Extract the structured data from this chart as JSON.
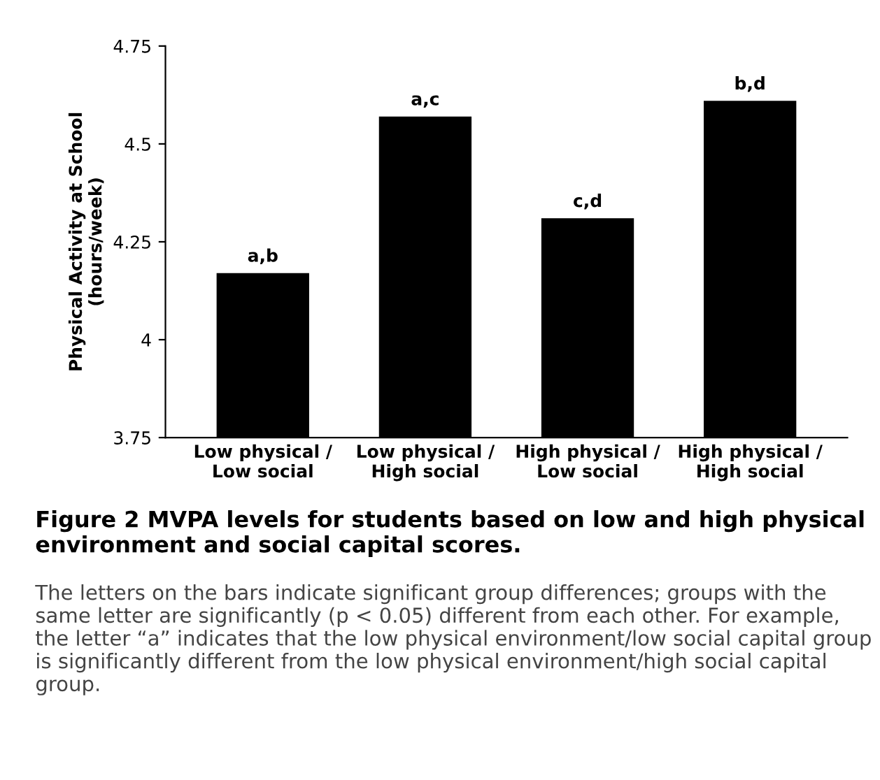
{
  "chart_data": {
    "type": "bar",
    "title": "Figure 2 MVPA levels for students based on low and high physical environment and social capital scores.",
    "ylabel": "Physical Activity at School\n(hours/week)",
    "categories": [
      "Low physical /\nLow social",
      "Low physical /\nHigh social",
      "High physical /\nLow social",
      "High physical /\nHigh social"
    ],
    "values": [
      4.17,
      4.57,
      4.31,
      4.61
    ],
    "color": "#000000",
    "ylim": [
      3.75,
      4.75
    ],
    "yticks": [
      3.75,
      4,
      4.25,
      4.5,
      4.75
    ],
    "grid": false,
    "annotations": [
      {
        "text": "a,b",
        "x": "Low physical /\nLow social",
        "y": 4.17
      },
      {
        "text": "a,c",
        "x": "Low physical /\nHigh social",
        "y": 4.57
      },
      {
        "text": "c,d",
        "x": "High physical /\nLow social",
        "y": 4.31
      },
      {
        "text": "b,d",
        "x": "High physical /\nHigh social",
        "y": 4.61
      },
      "The letters on the bars indicate significant group differences; groups with the same letter are significantly (p < 0.05) different from each other. For example, the letter “a” indicates that the low physical environment/low social capital group is significantly different from the low physical environment/high social capital group."
    ]
  }
}
